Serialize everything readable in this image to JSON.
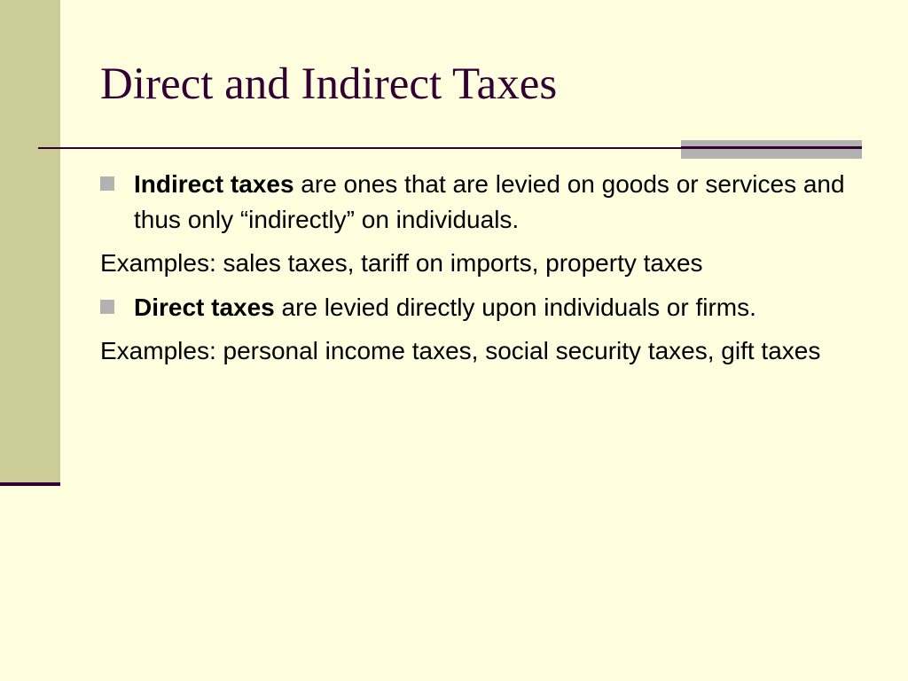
{
  "slide": {
    "title": "Direct and Indirect Taxes",
    "colors": {
      "background": "#ffffe0",
      "sidebar": "#cccc99",
      "accent": "#330033",
      "bullet": "#b2b2b2"
    },
    "items": [
      {
        "type": "bullet",
        "bold": "Indirect taxes",
        "text": " are ones that are levied on goods or services and thus only “indirectly” on individuals."
      },
      {
        "type": "plain",
        "text": "Examples: sales taxes, tariff on imports, property taxes"
      },
      {
        "type": "bullet",
        "bold": "Direct taxes",
        "text": " are levied directly upon individuals or firms."
      },
      {
        "type": "plain",
        "text": "Examples: personal income taxes, social security taxes, gift taxes"
      }
    ]
  }
}
